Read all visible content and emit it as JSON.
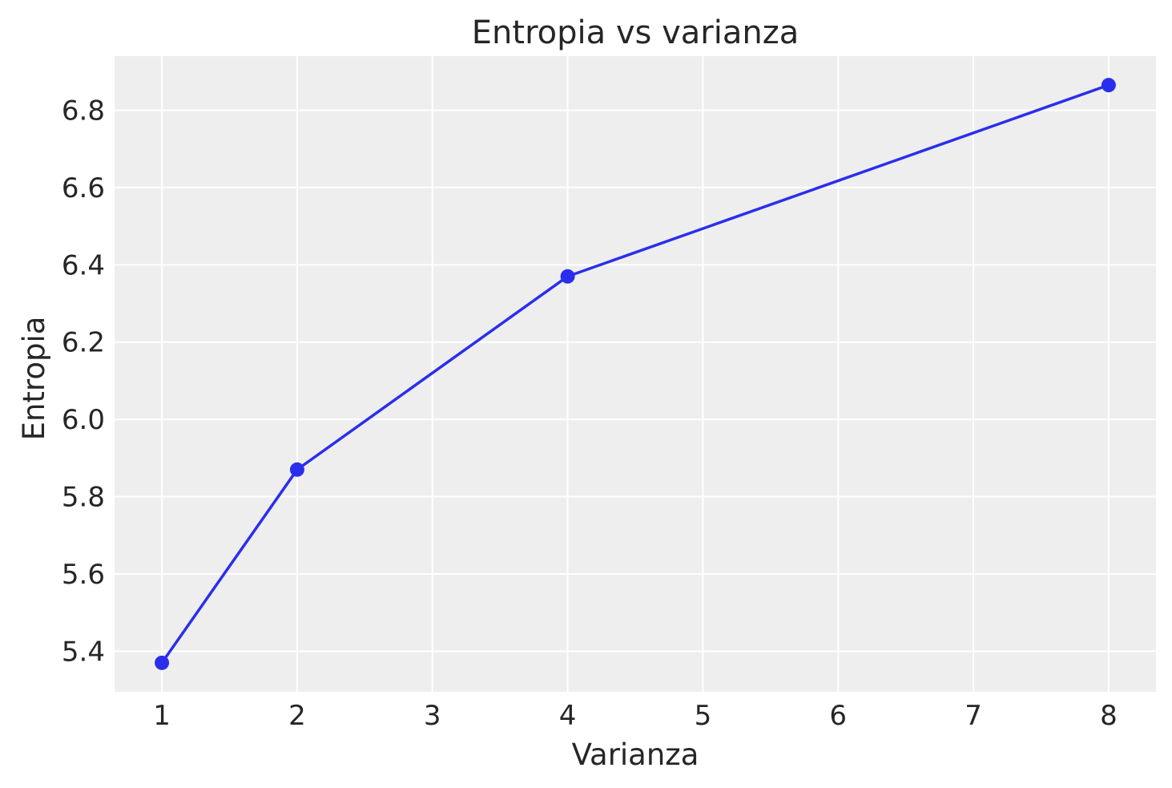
{
  "chart_data": {
    "type": "line",
    "title": "Entropia vs varianza",
    "xlabel": "Varianza",
    "ylabel": "Entropia",
    "x": [
      1,
      2,
      4,
      8
    ],
    "y": [
      5.37,
      5.87,
      6.37,
      6.865
    ],
    "xlim": [
      0.65,
      8.35
    ],
    "ylim": [
      5.295,
      6.94
    ],
    "xticks": [
      1,
      2,
      3,
      4,
      5,
      6,
      7,
      8
    ],
    "xtick_labels": [
      "1",
      "2",
      "3",
      "4",
      "5",
      "6",
      "7",
      "8"
    ],
    "yticks": [
      5.4,
      5.6,
      5.8,
      6.0,
      6.2,
      6.4,
      6.6,
      6.8
    ],
    "ytick_labels": [
      "5.4",
      "5.6",
      "5.8",
      "6.0",
      "6.2",
      "6.4",
      "6.6",
      "6.8"
    ],
    "grid": true,
    "colors": {
      "series": "#2a2eec",
      "plot_background": "#eeeeee",
      "grid": "#ffffff",
      "text": "#262626"
    }
  }
}
